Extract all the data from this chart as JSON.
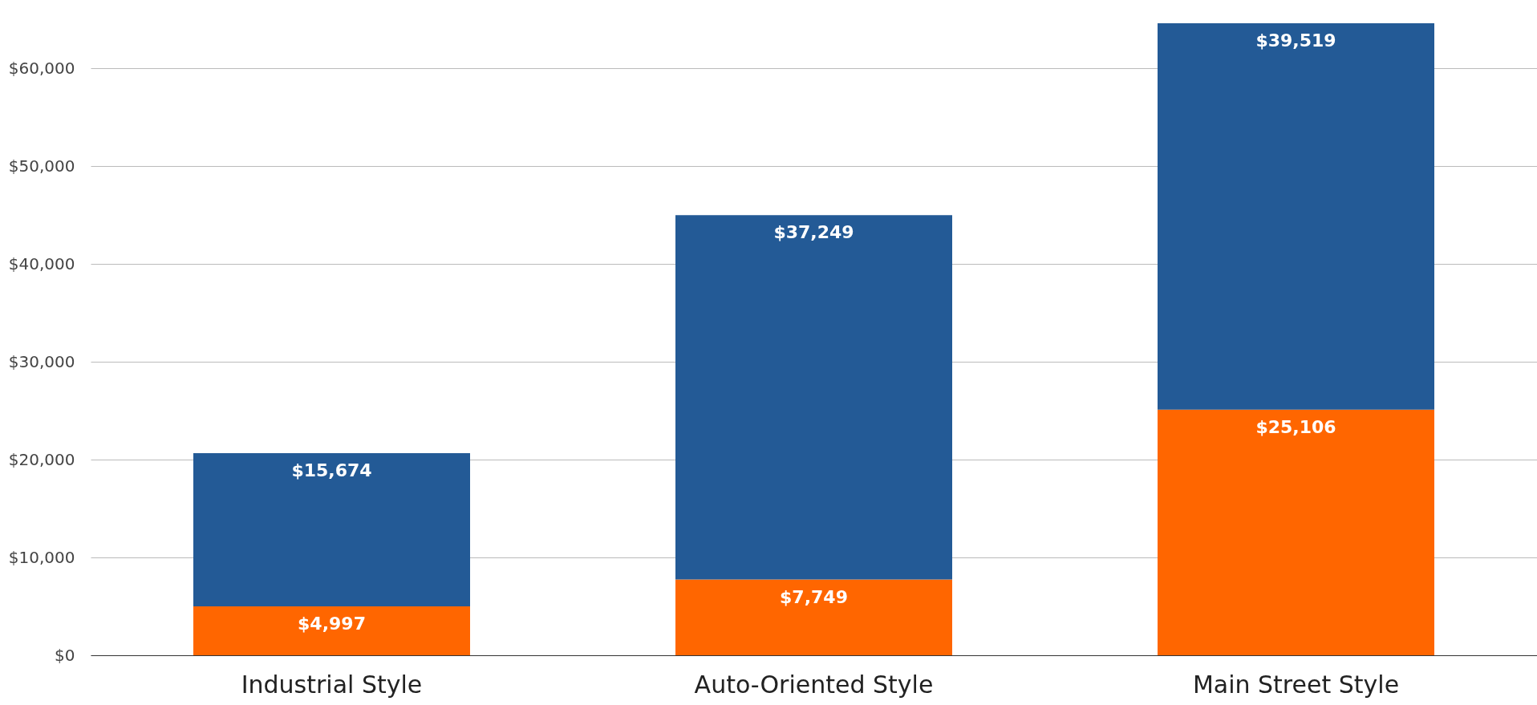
{
  "chart_data": {
    "type": "bar",
    "stacked": true,
    "categories": [
      "Industrial Style",
      "Auto-Oriented Style",
      "Main Street Style"
    ],
    "series": [
      {
        "color": "#ff6600",
        "values": [
          4997,
          7749,
          25106
        ]
      },
      {
        "color": "#235a96",
        "values": [
          15674,
          37249,
          39519
        ]
      }
    ],
    "ylim": [
      0,
      67000
    ],
    "yticks": [
      {
        "value": 0,
        "label": "$0"
      },
      {
        "value": 10000,
        "label": "$10,000"
      },
      {
        "value": 20000,
        "label": "$20,000"
      },
      {
        "value": 30000,
        "label": "$30,000"
      },
      {
        "value": 40000,
        "label": "$40,000"
      },
      {
        "value": 50000,
        "label": "$50,000"
      },
      {
        "value": 60000,
        "label": "$60,000"
      }
    ],
    "grid": "y",
    "value_labels": [
      [
        "$4,997",
        "$7,749",
        "$25,106"
      ],
      [
        "$15,674",
        "$37,249",
        "$39,519"
      ]
    ]
  }
}
